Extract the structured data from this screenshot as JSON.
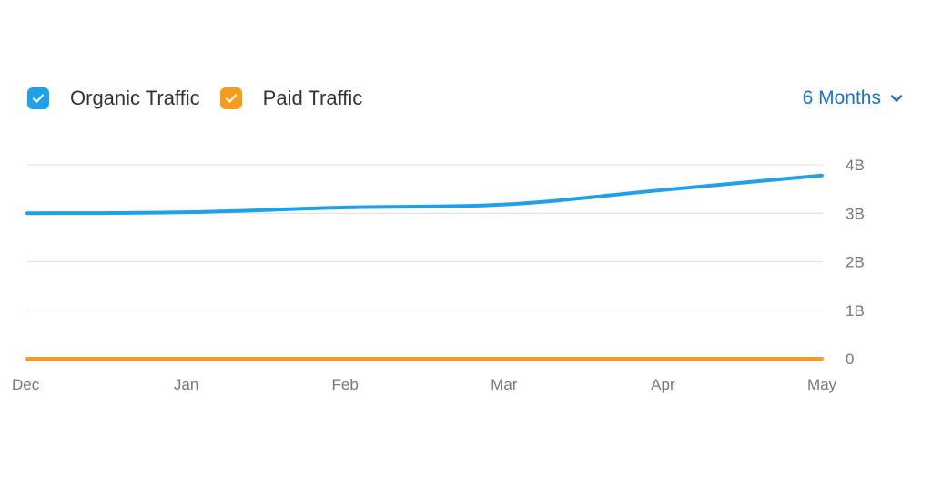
{
  "legend": {
    "items": [
      {
        "label": "Organic Traffic",
        "color": "#1ea1e8",
        "checked": true,
        "icon": "check-icon"
      },
      {
        "label": "Paid Traffic",
        "color": "#f79b1c",
        "checked": true,
        "icon": "check-icon"
      }
    ]
  },
  "range_select": {
    "label": "6 Months",
    "icon": "chevron-down-icon",
    "color": "#1a73c7"
  },
  "chart_data": {
    "type": "line",
    "categories": [
      "Dec",
      "Jan",
      "Feb",
      "Mar",
      "Apr",
      "May"
    ],
    "series": [
      {
        "name": "Organic Traffic",
        "color": "#1ea1e8",
        "values": [
          3.0,
          3.02,
          3.12,
          3.18,
          3.48,
          3.78
        ]
      },
      {
        "name": "Paid Traffic",
        "color": "#f79b1c",
        "values": [
          0.0,
          0.0,
          0.0,
          0.0,
          0.0,
          0.0
        ]
      }
    ],
    "y_ticks": [
      {
        "value": 0,
        "label": "0"
      },
      {
        "value": 1,
        "label": "1B"
      },
      {
        "value": 2,
        "label": "2B"
      },
      {
        "value": 3,
        "label": "3B"
      },
      {
        "value": 4,
        "label": "4B"
      }
    ],
    "ylim": [
      0,
      4
    ],
    "grid": true,
    "y_axis_position": "right",
    "legend_position": "top-left"
  }
}
